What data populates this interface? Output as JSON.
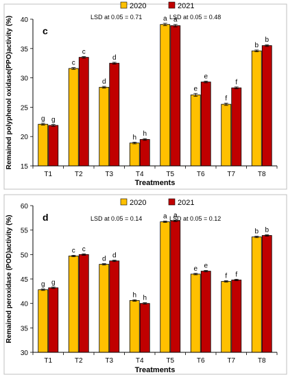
{
  "chart_data": [
    {
      "type": "bar",
      "panel_label": "c",
      "categories": [
        "T1",
        "T2",
        "T3",
        "T4",
        "T5",
        "T6",
        "T7",
        "T8"
      ],
      "series": [
        {
          "name": "2020",
          "color": "#FFC000",
          "values": [
            22.1,
            31.6,
            28.4,
            18.9,
            39.1,
            27.1,
            25.5,
            34.6
          ],
          "errors": [
            0.15,
            0.15,
            0.15,
            0.15,
            0.2,
            0.25,
            0.2,
            0.15
          ],
          "letters": [
            "g",
            "c",
            "d",
            "h",
            "a",
            "e",
            "f",
            "b"
          ]
        },
        {
          "name": "2021",
          "color": "#C00000",
          "values": [
            21.9,
            33.5,
            32.5,
            19.5,
            38.9,
            29.3,
            28.3,
            35.5
          ],
          "errors": [
            0.15,
            0.15,
            0.15,
            0.15,
            0.2,
            0.15,
            0.15,
            0.15
          ],
          "letters": [
            "g",
            "c",
            "d",
            "h",
            "a",
            "e",
            "f",
            "b"
          ]
        }
      ],
      "lsd": [
        "LSD at 0.05 = 0.71",
        "LSD at 0.05 = 0.48"
      ],
      "xlabel": "Treatments",
      "ylabel": "Remained polyphenol oxidase(PPO)activity (%)",
      "ylim": [
        15,
        40
      ],
      "yticks": [
        15,
        20,
        25,
        30,
        35,
        40
      ],
      "grid": false,
      "legend": "top-center"
    },
    {
      "type": "bar",
      "panel_label": "d",
      "categories": [
        "T1",
        "T2",
        "T3",
        "T4",
        "T5",
        "T6",
        "T7",
        "T8"
      ],
      "series": [
        {
          "name": "2020",
          "color": "#FFC000",
          "values": [
            42.8,
            49.7,
            48.0,
            40.6,
            56.7,
            46.0,
            44.5,
            53.6
          ],
          "errors": [
            0.15,
            0.15,
            0.15,
            0.15,
            0.15,
            0.15,
            0.15,
            0.15
          ],
          "letters": [
            "g",
            "c",
            "d",
            "h",
            "a",
            "e",
            "f",
            "b"
          ]
        },
        {
          "name": "2021",
          "color": "#C00000",
          "values": [
            43.2,
            50.0,
            48.7,
            40.0,
            56.9,
            46.6,
            44.8,
            53.9
          ],
          "errors": [
            0.15,
            0.15,
            0.15,
            0.15,
            0.15,
            0.15,
            0.15,
            0.15
          ],
          "letters": [
            "g",
            "c",
            "d",
            "h",
            "a",
            "e",
            "f",
            "b"
          ]
        }
      ],
      "lsd": [
        "LSD at 0.05 = 0.14",
        "LSD at 0.05 = 0.12"
      ],
      "xlabel": "Treatments",
      "ylabel": "Remained peroxidase (POD)activity (%)",
      "ylim": [
        30,
        60
      ],
      "yticks": [
        30,
        35,
        40,
        45,
        50,
        55,
        60
      ],
      "grid": false,
      "legend": "top-center"
    }
  ]
}
